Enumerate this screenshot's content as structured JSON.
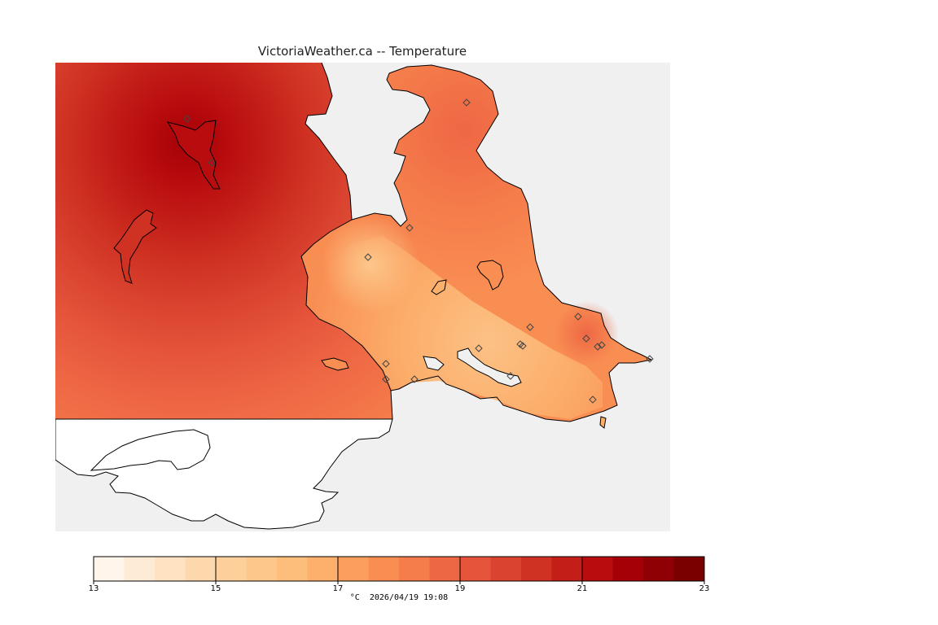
{
  "header": {
    "title": "VictoriaWeather.ca -- Temperature"
  },
  "colorbar": {
    "min": 13,
    "max": 23,
    "step": 0.5,
    "tick_labels": [
      "13",
      "15",
      "17",
      "19",
      "21",
      "23"
    ],
    "unit": "°C",
    "colors": [
      "#fff5ea",
      "#feebd6",
      "#fee2c2",
      "#fed8ad",
      "#fdcf9a",
      "#fdc78b",
      "#fdbd7b",
      "#fcb06c",
      "#fc9f5e",
      "#f98e53",
      "#f57c4b",
      "#ee6744",
      "#e5543b",
      "#d9432f",
      "#cf3223",
      "#c41e18",
      "#b80c0e",
      "#a50007",
      "#8f0005",
      "#7a0000"
    ]
  },
  "timestamp": "2026/04/19 19:08",
  "colors": {
    "water": "#f0f0f0",
    "land_outside": "#ffffff",
    "coast": "#000000"
  },
  "stations": {
    "count": 20
  }
}
